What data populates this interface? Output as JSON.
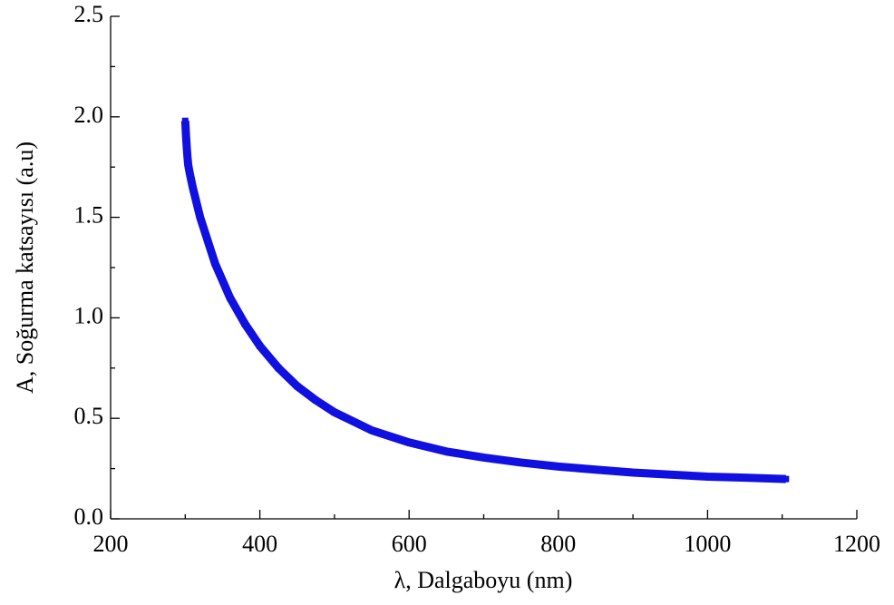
{
  "chart_data": {
    "type": "line",
    "x_label": "λ, Dalgaboyu (nm)",
    "y_label": "A, Soğurma katsayısı (a.u)",
    "series": [
      {
        "color": "#1010e0",
        "marker": "square",
        "x": [
          300,
          301,
          302,
          303,
          304,
          306,
          310,
          320,
          340,
          360,
          380,
          400,
          425,
          450,
          475,
          500,
          550,
          600,
          650,
          700,
          750,
          800,
          850,
          900,
          950,
          1000,
          1050,
          1105
        ],
        "values": [
          1.98,
          1.91,
          1.85,
          1.8,
          1.76,
          1.72,
          1.65,
          1.5,
          1.27,
          1.1,
          0.97,
          0.86,
          0.75,
          0.66,
          0.59,
          0.53,
          0.44,
          0.38,
          0.335,
          0.305,
          0.28,
          0.26,
          0.245,
          0.23,
          0.22,
          0.21,
          0.205,
          0.198
        ]
      }
    ],
    "xlim": [
      200,
      1200
    ],
    "xticks": [
      200,
      400,
      600,
      800,
      1000,
      1200
    ],
    "xminorticks": [
      300,
      500,
      700,
      900,
      1100
    ],
    "ylim": [
      0,
      2.5
    ],
    "yticks": [
      {
        "value": 0,
        "label": "0.0"
      },
      0.5,
      {
        "value": 1,
        "label": "1.0"
      },
      1.5,
      {
        "value": 2,
        "label": "2.0"
      },
      2.5
    ],
    "yminorticks": [
      0.25,
      0.75,
      1.25,
      1.75,
      2.25
    ]
  }
}
